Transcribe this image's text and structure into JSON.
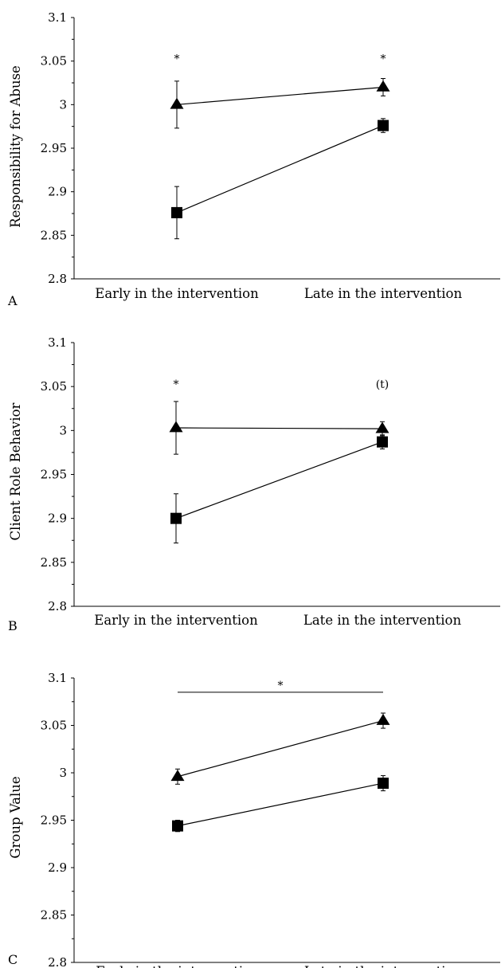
{
  "chart_data": [
    {
      "type": "line",
      "panel_label": "A",
      "ylabel": "Responsibility for Abuse",
      "xlabel": "",
      "categories": [
        "Early in the intervention",
        "Late in the intervention"
      ],
      "ylim": [
        2.8,
        3.1
      ],
      "yticks": [
        "3.1",
        "3.05",
        "3",
        "2.95",
        "2.9",
        "2.85",
        "2.8"
      ],
      "grid": false,
      "series": [
        {
          "marker": "triangle",
          "values": [
            3.0,
            3.02
          ],
          "errors": [
            0.027,
            0.01
          ]
        },
        {
          "marker": "square",
          "values": [
            2.876,
            2.976
          ],
          "errors": [
            0.03,
            0.008
          ]
        }
      ],
      "annotations": [
        {
          "text": "*",
          "category": 0,
          "y": 3.053
        },
        {
          "text": "*",
          "category": 1,
          "y": 3.053
        }
      ]
    },
    {
      "type": "line",
      "panel_label": "B",
      "ylabel": "Client Role Behavior",
      "xlabel": "",
      "categories": [
        "Early in the intervention",
        "Late in the intervention"
      ],
      "ylim": [
        2.8,
        3.1
      ],
      "yticks": [
        "3.1",
        "3.05",
        "3",
        "2.95",
        "2.9",
        "2.85",
        "2.8"
      ],
      "grid": false,
      "series": [
        {
          "marker": "triangle",
          "values": [
            3.003,
            3.002
          ],
          "errors": [
            0.03,
            0.008
          ]
        },
        {
          "marker": "square",
          "values": [
            2.9,
            2.987
          ],
          "errors": [
            0.028,
            0.008
          ]
        }
      ],
      "annotations": [
        {
          "text": "*",
          "category": 0,
          "y": 3.053
        },
        {
          "text": "(t)",
          "category": 1,
          "y": 3.053
        }
      ]
    },
    {
      "type": "line",
      "panel_label": "C",
      "ylabel": "Group Value",
      "xlabel": "",
      "categories": [
        "Early in the intervention",
        "Late in the intervention"
      ],
      "ylim": [
        2.8,
        3.1
      ],
      "yticks": [
        "3.1",
        "3.05",
        "3",
        "2.95",
        "2.9",
        "2.85",
        "2.8"
      ],
      "grid": false,
      "series": [
        {
          "marker": "triangle",
          "values": [
            2.996,
            3.055
          ],
          "errors": [
            0.008,
            0.008
          ]
        },
        {
          "marker": "square",
          "values": [
            2.944,
            2.989
          ],
          "errors": [
            0.006,
            0.008
          ]
        }
      ],
      "annotations": [
        {
          "text": "*",
          "bracket": [
            0,
            1
          ],
          "y": 3.085
        }
      ]
    }
  ]
}
